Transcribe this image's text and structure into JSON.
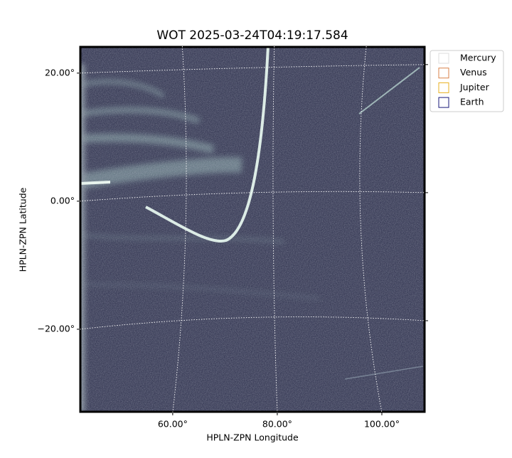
{
  "chart_data": {
    "type": "image",
    "title": "WOT 2025-03-24T04:19:17.584",
    "xlabel": "HPLN-ZPN Longitude",
    "ylabel": "HPLN-ZPN Latitude",
    "xlim": [
      42.2,
      108.3
    ],
    "ylim": [
      -33.0,
      24.2
    ],
    "xticks": [
      {
        "value": 60,
        "label": "60.00°"
      },
      {
        "value": 80,
        "label": "80.00°"
      },
      {
        "value": 100,
        "label": "100.00°"
      }
    ],
    "yticks": [
      {
        "value": 20,
        "label": "20.00°"
      },
      {
        "value": 0,
        "label": "0.00°"
      },
      {
        "value": -20,
        "label": "−20.00°"
      }
    ],
    "grid": true,
    "legend": "outside upper right",
    "series": [
      {
        "name": "Mercury",
        "color": "#dddddd"
      },
      {
        "name": "Venus",
        "color": "#d9824a"
      },
      {
        "name": "Jupiter",
        "color": "#e8b020"
      },
      {
        "name": "Earth",
        "color": "#1a1a7a"
      }
    ]
  }
}
